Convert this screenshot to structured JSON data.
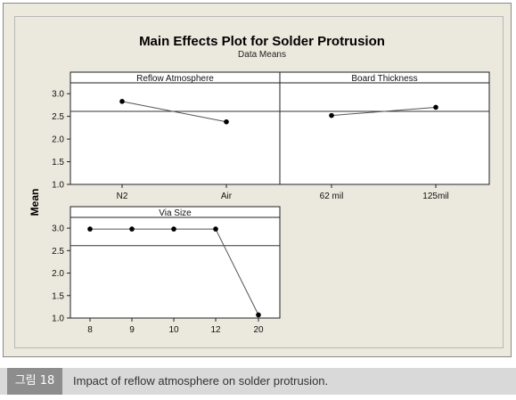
{
  "title": "Main Effects Plot for Solder Protrusion",
  "subtitle": "Data Means",
  "ylabel": "Mean",
  "caption": {
    "tag": "그림 18",
    "text": "Impact of reflow atmosphere on solder protrusion."
  },
  "colors": {
    "background": "#ece9dd",
    "panel": "#ffffff",
    "line": "#555555",
    "point": "#000000",
    "reference_line": "#333333"
  },
  "chart_data": [
    {
      "type": "line",
      "panel_title": "Reflow Atmosphere",
      "categories": [
        "N2",
        "Air"
      ],
      "values": [
        2.83,
        2.38
      ],
      "ylim": [
        1.0,
        3.2
      ],
      "yticks": [
        1.0,
        1.5,
        2.0,
        2.5,
        3.0
      ],
      "ytick_labels": [
        "1.0",
        "1.5",
        "2.0",
        "2.5",
        "3.0"
      ],
      "reference_line": 2.61
    },
    {
      "type": "line",
      "panel_title": "Board Thickness",
      "categories": [
        "62 mil",
        "125mil"
      ],
      "values": [
        2.52,
        2.7
      ],
      "ylim": [
        1.0,
        3.2
      ],
      "reference_line": 2.61
    },
    {
      "type": "line",
      "panel_title": "Via Size",
      "categories": [
        "8",
        "9",
        "10",
        "12",
        "20"
      ],
      "values": [
        2.98,
        2.98,
        2.98,
        2.98,
        1.07
      ],
      "ylim": [
        1.0,
        3.2
      ],
      "yticks": [
        1.0,
        1.5,
        2.0,
        2.5,
        3.0
      ],
      "ytick_labels": [
        "1.0",
        "1.5",
        "2.0",
        "2.5",
        "3.0"
      ],
      "reference_line": 2.61
    }
  ]
}
